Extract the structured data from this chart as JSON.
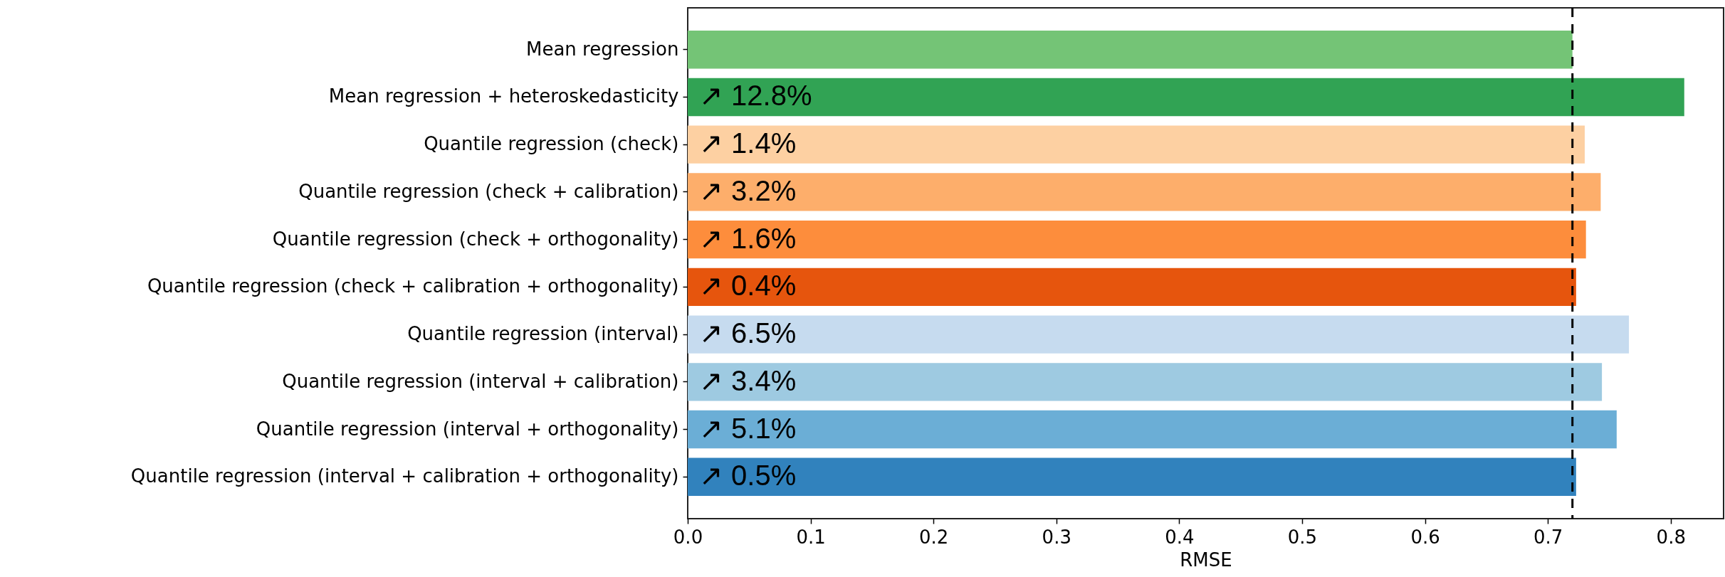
{
  "chart_data": {
    "type": "bar",
    "orientation": "horizontal",
    "categories": [
      "Mean regression",
      "Mean regression + heteroskedasticity",
      "Quantile regression (check)",
      "Quantile regression (check + calibration)",
      "Quantile regression (check + orthogonality)",
      "Quantile regression (check + calibration + orthogonality)",
      "Quantile regression (interval)",
      "Quantile regression (interval + calibration)",
      "Quantile regression (interval + orthogonality)",
      "Quantile regression (interval + calibration + orthogonality)"
    ],
    "values": [
      0.72,
      0.811,
      0.73,
      0.743,
      0.731,
      0.723,
      0.766,
      0.744,
      0.756,
      0.723
    ],
    "colors": [
      "#74c476",
      "#31a354",
      "#fdd0a2",
      "#fdae6b",
      "#fd8d3c",
      "#e6550d",
      "#c6dbef",
      "#9ecae1",
      "#6baed6",
      "#3182bd"
    ],
    "annotations": [
      {
        "text": "↗ 12.8%",
        "y": "Mean regression + heteroskedasticity"
      },
      {
        "text": "↗ 1.4%",
        "y": "Quantile regression (check)"
      },
      {
        "text": "↗ 3.2%",
        "y": "Quantile regression (check + calibration)"
      },
      {
        "text": "↗ 1.6%",
        "y": "Quantile regression (check + orthogonality)"
      },
      {
        "text": "↗ 0.4%",
        "y": "Quantile regression (check + calibration + orthogonality)"
      },
      {
        "text": "↗ 6.5%",
        "y": "Quantile regression (interval)"
      },
      {
        "text": "↗ 3.4%",
        "y": "Quantile regression (interval + calibration)"
      },
      {
        "text": "↗ 5.1%",
        "y": "Quantile regression (interval + orthogonality)"
      },
      {
        "text": "↗ 0.5%",
        "y": "Quantile regression (interval + calibration + orthogonality)"
      }
    ],
    "xlabel": "RMSE",
    "xlim": [
      0,
      0.843
    ],
    "xticks": [
      {
        "value": 0,
        "label": "0.0"
      },
      0.1,
      0.2,
      0.3,
      0.4,
      0.5,
      0.6,
      0.7,
      0.8
    ],
    "ref_lines": [
      {
        "axis": "x",
        "value": 0.72,
        "color": "#000000",
        "line_style": "dashed"
      }
    ]
  }
}
